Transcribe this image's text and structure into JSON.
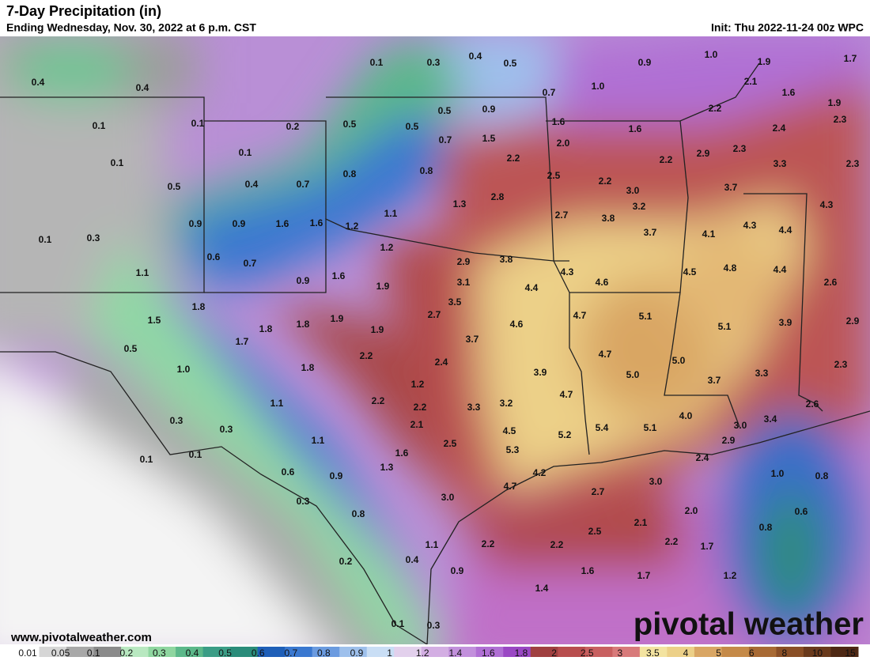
{
  "header": {
    "title": "7-Day Precipitation (in)",
    "subtitle": "Ending Wednesday, Nov. 30, 2022 at 6 p.m. CST",
    "init": "Init: Thu 2022-11-24 00z WPC"
  },
  "footer": {
    "website": "www.pivotalweather.com",
    "logo": "pivotal weather"
  },
  "legend": {
    "labels": [
      "0.01",
      "0.05",
      "0.1",
      "0.2",
      "0.3",
      "0.4",
      "0.5",
      "0.6",
      "0.7",
      "0.8",
      "0.9",
      "1",
      "1.2",
      "1.4",
      "1.6",
      "1.8",
      "2",
      "2.5",
      "3",
      "3.5",
      "4",
      "5",
      "6",
      "8",
      "10",
      "15"
    ],
    "colors": [
      "#ffffff",
      "#d6d6d6",
      "#a8a8a8",
      "#8b8b8b",
      "#b8e8c0",
      "#8fd6a0",
      "#5cb88a",
      "#3b9d86",
      "#2a8c7a",
      "#1f5fb8",
      "#3a78d0",
      "#6b9be0",
      "#9ec0ec",
      "#c9def5",
      "#e2d0ec",
      "#d3aee3",
      "#c290dc",
      "#b06fd4",
      "#9a48c4",
      "#a04040",
      "#b84e4e",
      "#c86060",
      "#d87a7a",
      "#f3e3a0",
      "#ecd088",
      "#d9a664",
      "#c58a48",
      "#a86a34",
      "#8a4f26",
      "#6a3a1c",
      "#4e2814"
    ]
  },
  "map_labels": [
    "0.4",
    "0.4",
    "0.1",
    "0.1",
    "0.1",
    "0.2",
    "0.1",
    "0.5",
    "0.4",
    "0.7",
    "0.1",
    "0.3",
    "0.9",
    "0.9",
    "1.6",
    "1.6",
    "0.6",
    "0.7",
    "0.9",
    "1.1",
    "1.8",
    "1.5",
    "1.6",
    "1.8",
    "1.8",
    "1.9",
    "1.7",
    "0.5",
    "1.0",
    "1.8",
    "2.2",
    "1.9",
    "1.9",
    "1.2",
    "1.2",
    "1.1",
    "0.8",
    "0.5",
    "0.5",
    "0.1",
    "0.3",
    "0.4",
    "0.5",
    "0.5",
    "0.7",
    "0.8",
    "0.9",
    "1.5",
    "1.3",
    "2.2",
    "2.8",
    "2.9",
    "3.8",
    "3.1",
    "3.5",
    "2.7",
    "3.7",
    "2.4",
    "1.2",
    "2.2",
    "2.2",
    "2.1",
    "1.1",
    "1.1",
    "0.3",
    "0.3",
    "0.1",
    "0.1",
    "0.6",
    "0.9",
    "1.3",
    "1.6",
    "2.5",
    "3.3",
    "3.2",
    "4.5",
    "5.3",
    "4.7",
    "4.2",
    "3.0",
    "0.3",
    "0.8",
    "1.1",
    "0.4",
    "0.2",
    "0.9",
    "0.1",
    "0.3",
    "2.2",
    "2.2",
    "2.5",
    "1.6",
    "1.4",
    "1.7",
    "2.7",
    "3.0",
    "2.1",
    "2.2",
    "2.0",
    "1.7",
    "1.2",
    "0.8",
    "0.6",
    "0.8",
    "1.0",
    "2.4",
    "2.9",
    "3.0",
    "3.4",
    "2.6",
    "4.0",
    "5.1",
    "5.4",
    "5.2",
    "4.7",
    "3.9",
    "5.0",
    "4.7",
    "5.0",
    "3.7",
    "3.3",
    "2.3",
    "5.1",
    "3.9",
    "2.9",
    "2.6",
    "4.4",
    "4.8",
    "4.5",
    "4.1",
    "4.3",
    "4.4",
    "4.3",
    "4.6",
    "4.4",
    "4.3",
    "4.6",
    "4.7",
    "5.1",
    "3.7",
    "3.8",
    "3.2",
    "2.7",
    "3.0",
    "2.2",
    "2.5",
    "3.7",
    "3.3",
    "2.3",
    "2.9",
    "2.2",
    "2.3",
    "2.4",
    "2.3",
    "1.9",
    "1.6",
    "2.1",
    "2.2",
    "1.9",
    "1.7",
    "1.0",
    "0.9",
    "1.0",
    "0.7",
    "1.6",
    "2.0",
    "1.6"
  ]
}
